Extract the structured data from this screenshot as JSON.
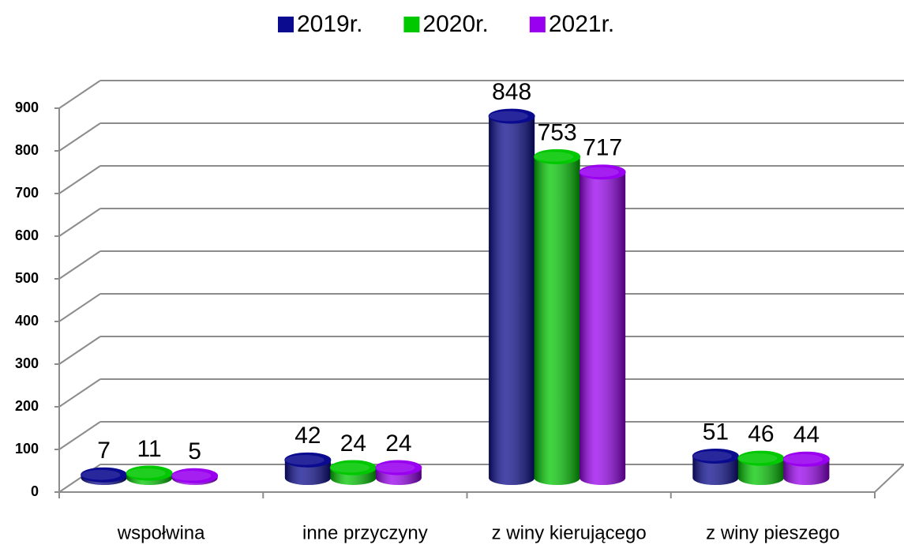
{
  "chart_data": {
    "type": "bar3d",
    "categories": [
      "wspołwina",
      "inne przyczyny",
      "z winy kierującego",
      "z winy pieszego"
    ],
    "series": [
      {
        "name": "2019r.",
        "color": "#0b0b8f",
        "values": [
          7,
          42,
          848,
          51
        ]
      },
      {
        "name": "2020r.",
        "color": "#00c800",
        "values": [
          11,
          24,
          753,
          46
        ]
      },
      {
        "name": "2021r.",
        "color": "#9a00f0",
        "values": [
          5,
          24,
          717,
          44
        ]
      }
    ],
    "ylim": [
      0,
      900
    ],
    "yticks": [
      0,
      100,
      200,
      300,
      400,
      500,
      600,
      700,
      800,
      900
    ],
    "grid": true,
    "legend": "top"
  }
}
